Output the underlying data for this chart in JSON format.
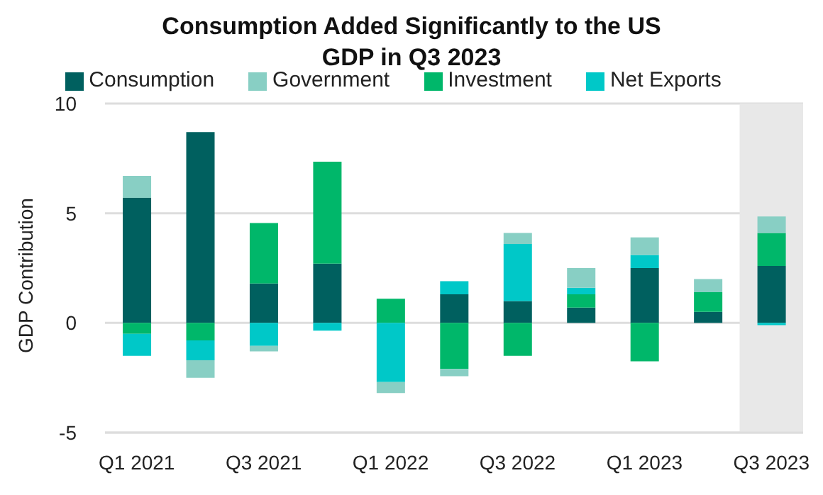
{
  "chart_data": {
    "type": "bar",
    "title": "Consumption Added Significantly to the US GDP in Q3 2023",
    "ylabel": "GDP Contribution",
    "categories": [
      "Q1 2021",
      null,
      "Q3 2021",
      null,
      "Q1 2022",
      null,
      "Q3 2022",
      null,
      "Q1 2023",
      null,
      "Q3 2023"
    ],
    "series": [
      {
        "name": "Consumption",
        "color": "#00605f",
        "values": [
          5.7,
          8.7,
          1.8,
          2.7,
          0,
          1.3,
          1.0,
          0.7,
          2.5,
          0.5,
          2.6
        ]
      },
      {
        "name": "Investment",
        "color": "#00b76a",
        "values": [
          -0.5,
          -0.8,
          2.75,
          4.65,
          1.1,
          -2.1,
          -1.5,
          0.6,
          -1.75,
          0.9,
          1.5
        ]
      },
      {
        "name": "Net Exports",
        "color": "#00c8c8",
        "values": [
          -1.0,
          -0.9,
          -1.05,
          -0.35,
          -2.7,
          0.6,
          2.6,
          0.3,
          0.6,
          0,
          -0.1
        ]
      },
      {
        "name": "Government",
        "color": "#88cfc4",
        "values": [
          1.0,
          -0.8,
          -0.25,
          0,
          -0.5,
          -0.33,
          0.5,
          0.9,
          0.8,
          0.6,
          0.75
        ]
      }
    ],
    "stacked": true,
    "ylim": [
      -5,
      10
    ],
    "yticks": [
      -5,
      0,
      5,
      10
    ],
    "grid": "y",
    "legend": "top",
    "bands": [
      {
        "axis": "x",
        "from": "Q3 2023",
        "to": "Q3 2023",
        "color": "#e8e8e8"
      }
    ]
  }
}
